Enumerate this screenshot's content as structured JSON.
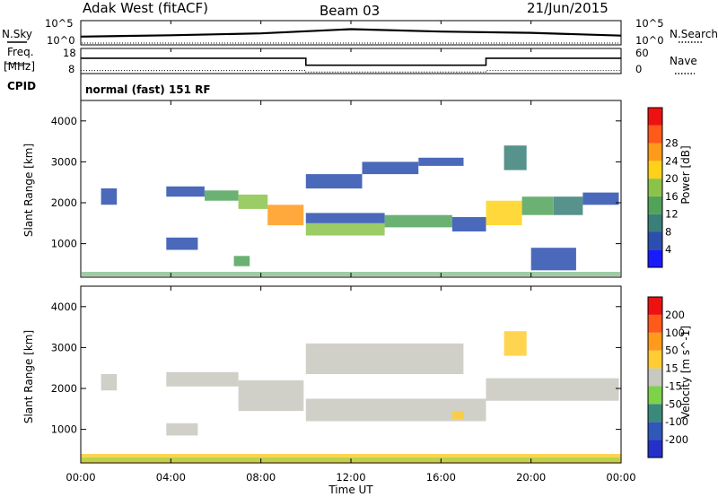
{
  "header": {
    "station": "Adak West (fitACF)",
    "beam": "Beam 03",
    "date": "21/Jun/2015"
  },
  "panels": {
    "nsky": {
      "left_label": "N.Sky",
      "right_label": "N.Search",
      "left_ticks": [
        "10^5",
        "10^0"
      ],
      "right_ticks": [
        "10^5",
        "10^0"
      ]
    },
    "freq": {
      "left_label_line1": "Freq.",
      "left_label_line2": "[MHz]",
      "left_ticks": [
        "18",
        "8"
      ],
      "right_label": "Nave",
      "right_ticks": [
        "60",
        "0"
      ]
    },
    "cpid": {
      "label": "CPID",
      "text": "normal (fast) 151 RF"
    },
    "power": {
      "ylabel": "Slant Range [km]",
      "yticks": [
        "1000",
        "2000",
        "3000",
        "4000"
      ],
      "colorbar_label": "Power [dB]",
      "colorbar_ticks": [
        "4",
        "8",
        "12",
        "16",
        "20",
        "24",
        "28"
      ],
      "colors": [
        "#1a1aff",
        "#2b4fae",
        "#3a7f78",
        "#51a35a",
        "#8bc34a",
        "#ffd21a",
        "#ff9a1a",
        "#ff5a1a",
        "#ee1111"
      ]
    },
    "velocity": {
      "ylabel": "Slant Range [km]",
      "yticks": [
        "1000",
        "2000",
        "3000",
        "4000"
      ],
      "colorbar_label": "Velocity [m s^-1]",
      "colorbar_ticks": [
        "200",
        "100",
        "50",
        "15",
        "-15",
        "-50",
        "-100",
        "-200"
      ],
      "colors": [
        "#2430c8",
        "#2f58b8",
        "#3a8a7a",
        "#7ed24a",
        "#c8c8c0",
        "#ffcc33",
        "#ff9a1a",
        "#ff5a1a",
        "#ee1111"
      ]
    }
  },
  "xaxis": {
    "label": "Time UT",
    "ticks": [
      "00:00",
      "04:00",
      "08:00",
      "12:00",
      "16:00",
      "20:00",
      "00:00"
    ]
  },
  "chart_data": [
    {
      "type": "line",
      "title": "N.Sky / N.Search",
      "x": [
        0,
        4,
        8,
        12,
        16,
        20,
        24
      ],
      "series": [
        {
          "name": "N.Sky",
          "values": [
            0.35,
            0.42,
            0.52,
            0.75,
            0.62,
            0.55,
            0.4
          ]
        }
      ],
      "ylim": [
        0,
        5
      ]
    },
    {
      "type": "line",
      "title": "Freq. / Nave",
      "x": [
        0,
        10,
        10,
        18,
        18,
        24
      ],
      "series": [
        {
          "name": "Freq.",
          "values": [
            14.2,
            14.2,
            11.2,
            11.2,
            14.2,
            14.2
          ]
        },
        {
          "name": "Nave",
          "values": [
            31,
            31,
            27,
            27,
            31,
            31
          ]
        }
      ],
      "ylim": [
        8,
        18
      ]
    },
    {
      "type": "heatmap",
      "title": "Power [dB]",
      "xlim": [
        0,
        24
      ],
      "ylim": [
        180,
        4500
      ],
      "clim": [
        0,
        30
      ],
      "cells": [
        {
          "t0": 0.9,
          "t1": 1.6,
          "r0": 1950,
          "r1": 2350,
          "v": 4
        },
        {
          "t0": 3.8,
          "t1": 5.5,
          "r0": 2150,
          "r1": 2400,
          "v": 6
        },
        {
          "t0": 5.5,
          "t1": 7.0,
          "r0": 2050,
          "r1": 2300,
          "v": 10
        },
        {
          "t0": 7.0,
          "t1": 8.3,
          "r0": 1850,
          "r1": 2200,
          "v": 16
        },
        {
          "t0": 8.3,
          "t1": 9.9,
          "r0": 1450,
          "r1": 1950,
          "v": 22
        },
        {
          "t0": 3.8,
          "t1": 5.2,
          "r0": 850,
          "r1": 1150,
          "v": 5
        },
        {
          "t0": 6.8,
          "t1": 7.5,
          "r0": 450,
          "r1": 700,
          "v": 12
        },
        {
          "t0": 10.0,
          "t1": 13.5,
          "r0": 1200,
          "r1": 1500,
          "v": 16
        },
        {
          "t0": 10.0,
          "t1": 13.5,
          "r0": 1500,
          "r1": 1750,
          "v": 6
        },
        {
          "t0": 13.5,
          "t1": 16.5,
          "r0": 1400,
          "r1": 1700,
          "v": 10
        },
        {
          "t0": 16.5,
          "t1": 18.0,
          "r0": 1300,
          "r1": 1650,
          "v": 6
        },
        {
          "t0": 10.0,
          "t1": 12.5,
          "r0": 2350,
          "r1": 2700,
          "v": 5
        },
        {
          "t0": 12.5,
          "t1": 15.0,
          "r0": 2700,
          "r1": 3000,
          "v": 4
        },
        {
          "t0": 15.0,
          "t1": 17.0,
          "r0": 2900,
          "r1": 3100,
          "v": 5
        },
        {
          "t0": 18.0,
          "t1": 19.6,
          "r0": 1450,
          "r1": 2050,
          "v": 17
        },
        {
          "t0": 19.6,
          "t1": 21.0,
          "r0": 1700,
          "r1": 2150,
          "v": 13
        },
        {
          "t0": 21.0,
          "t1": 22.3,
          "r0": 1700,
          "r1": 2150,
          "v": 7
        },
        {
          "t0": 22.3,
          "t1": 23.9,
          "r0": 1950,
          "r1": 2250,
          "v": 5
        },
        {
          "t0": 18.8,
          "t1": 19.8,
          "r0": 2800,
          "r1": 3400,
          "v": 8
        },
        {
          "t0": 20.0,
          "t1": 22.0,
          "r0": 350,
          "r1": 900,
          "v": 6
        }
      ]
    },
    {
      "type": "heatmap",
      "title": "Velocity [m s^-1]",
      "xlim": [
        0,
        24
      ],
      "ylim": [
        180,
        4500
      ],
      "clim": [
        -250,
        250
      ],
      "cells": [
        {
          "t0": 0.9,
          "t1": 1.6,
          "r0": 1950,
          "r1": 2350,
          "v": 0
        },
        {
          "t0": 3.8,
          "t1": 7.0,
          "r0": 2050,
          "r1": 2400,
          "v": 0
        },
        {
          "t0": 7.0,
          "t1": 9.9,
          "r0": 1450,
          "r1": 2200,
          "v": 0
        },
        {
          "t0": 3.8,
          "t1": 5.2,
          "r0": 850,
          "r1": 1150,
          "v": 0
        },
        {
          "t0": 10.0,
          "t1": 18.0,
          "r0": 1200,
          "r1": 1750,
          "v": 0
        },
        {
          "t0": 16.5,
          "t1": 17.0,
          "r0": 1250,
          "r1": 1450,
          "v": 40
        },
        {
          "t0": 10.0,
          "t1": 17.0,
          "r0": 2350,
          "r1": 3100,
          "v": 0
        },
        {
          "t0": 18.0,
          "t1": 23.9,
          "r0": 1700,
          "r1": 2250,
          "v": 0
        },
        {
          "t0": 18.8,
          "t1": 19.8,
          "r0": 2800,
          "r1": 3400,
          "v": 40
        },
        {
          "t0": 0.0,
          "t1": 24.0,
          "r0": 180,
          "r1": 400,
          "v": 40
        }
      ]
    }
  ]
}
